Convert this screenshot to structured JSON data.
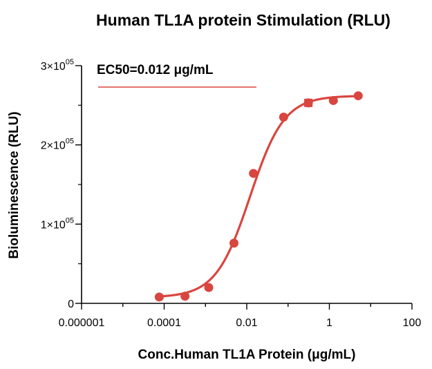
{
  "chart_data": {
    "type": "scatter",
    "title": "Human TL1A protein Stimulation (RLU)",
    "xlabel": "Conc.Human TL1A Protein (μg/mL)",
    "ylabel": "Bioluminescence (RLU)",
    "x_scale": "log",
    "xlim": [
      1e-06,
      100
    ],
    "ylim": [
      0,
      300000
    ],
    "x_ticks": [
      {
        "value": 1e-06,
        "label": "0.000001"
      },
      {
        "value": 0.0001,
        "label": "0.0001"
      },
      {
        "value": 0.01,
        "label": "0.01"
      },
      {
        "value": 1,
        "label": "1"
      },
      {
        "value": 100,
        "label": "100"
      }
    ],
    "y_ticks": [
      {
        "value": 0,
        "label": "0",
        "base": "",
        "exp": ""
      },
      {
        "value": 100000,
        "label": "1×10^05",
        "base": "1×10",
        "exp": "05"
      },
      {
        "value": 200000,
        "label": "2×10^05",
        "base": "2×10",
        "exp": "05"
      },
      {
        "value": 300000,
        "label": "3×10^05",
        "base": "3×10",
        "exp": "05"
      }
    ],
    "grid": false,
    "annotation": "EC50=0.012 μg/mL",
    "series": [
      {
        "color": "#d9453f",
        "points": [
          {
            "x": 7.6e-05,
            "y": 8000
          },
          {
            "x": 0.00032,
            "y": 9000
          },
          {
            "x": 0.0012,
            "y": 20000
          },
          {
            "x": 0.0049,
            "y": 76000
          },
          {
            "x": 0.0145,
            "y": 164000
          },
          {
            "x": 0.078,
            "y": 235000
          },
          {
            "x": 0.31,
            "y": 253000
          },
          {
            "x": 1.25,
            "y": 256000
          },
          {
            "x": 5.0,
            "y": 262000
          }
        ],
        "fit": {
          "bottom": 7500,
          "top": 262000,
          "ec50": 0.012,
          "hill": 1.05
        }
      }
    ]
  }
}
